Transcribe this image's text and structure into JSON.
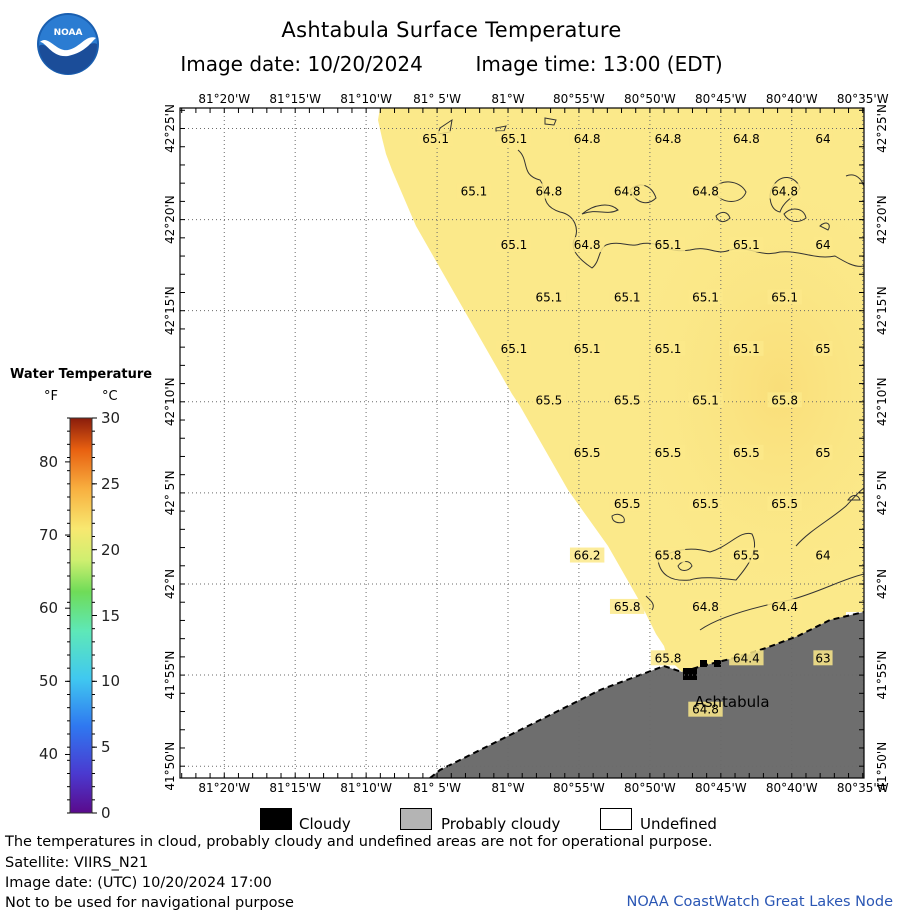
{
  "header": {
    "title": "Ashtabula Surface Temperature",
    "image_date": "Image date: 10/20/2024",
    "image_time": "Image time: 13:00 (EDT)",
    "logo_text": "NOAA"
  },
  "map": {
    "lon_labels": [
      "81°20'W",
      "81°15'W",
      "81°10'W",
      "81° 5'W",
      "81°W",
      "80°55'W",
      "80°50'W",
      "80°45'W",
      "80°40'W",
      "80°35'W"
    ],
    "lat_labels": [
      "42°25'N",
      "42°20'N",
      "42°15'N",
      "42°10'N",
      "42° 5'N",
      "42°N",
      "41°55'N",
      "41°50'N"
    ],
    "place_label": "Ashtabula",
    "temperature_labels": [
      {
        "t": "65.1",
        "lon": -81.085,
        "lat": 42.407
      },
      {
        "t": "65.1",
        "lon": -80.993,
        "lat": 42.407
      },
      {
        "t": "64.8",
        "lon": -80.907,
        "lat": 42.407
      },
      {
        "t": "64.8",
        "lon": -80.812,
        "lat": 42.407
      },
      {
        "t": "64.8",
        "lon": -80.72,
        "lat": 42.407
      },
      {
        "t": "64",
        "lon": -80.63,
        "lat": 42.407
      },
      {
        "t": "65.1",
        "lon": -81.04,
        "lat": 42.359
      },
      {
        "t": "64.8",
        "lon": -80.952,
        "lat": 42.359
      },
      {
        "t": "64.8",
        "lon": -80.86,
        "lat": 42.359
      },
      {
        "t": "64.8",
        "lon": -80.768,
        "lat": 42.359
      },
      {
        "t": "64.8",
        "lon": -80.675,
        "lat": 42.359
      },
      {
        "t": "65.1",
        "lon": -80.993,
        "lat": 42.31
      },
      {
        "t": "64.8",
        "lon": -80.907,
        "lat": 42.31
      },
      {
        "t": "65.1",
        "lon": -80.812,
        "lat": 42.31
      },
      {
        "t": "65.1",
        "lon": -80.72,
        "lat": 42.31
      },
      {
        "t": "64",
        "lon": -80.63,
        "lat": 42.31
      },
      {
        "t": "65.1",
        "lon": -80.952,
        "lat": 42.262
      },
      {
        "t": "65.1",
        "lon": -80.86,
        "lat": 42.262
      },
      {
        "t": "65.1",
        "lon": -80.768,
        "lat": 42.262
      },
      {
        "t": "65.1",
        "lon": -80.675,
        "lat": 42.262
      },
      {
        "t": "65.1",
        "lon": -80.993,
        "lat": 42.215
      },
      {
        "t": "65.1",
        "lon": -80.907,
        "lat": 42.215
      },
      {
        "t": "65.1",
        "lon": -80.812,
        "lat": 42.215
      },
      {
        "t": "65.1",
        "lon": -80.72,
        "lat": 42.215
      },
      {
        "t": "65",
        "lon": -80.63,
        "lat": 42.215
      },
      {
        "t": "65.5",
        "lon": -80.952,
        "lat": 42.168
      },
      {
        "t": "65.5",
        "lon": -80.86,
        "lat": 42.168
      },
      {
        "t": "65.1",
        "lon": -80.768,
        "lat": 42.168
      },
      {
        "t": "65.8",
        "lon": -80.675,
        "lat": 42.168
      },
      {
        "t": "65.5",
        "lon": -80.907,
        "lat": 42.12
      },
      {
        "t": "65.5",
        "lon": -80.812,
        "lat": 42.12
      },
      {
        "t": "65.5",
        "lon": -80.72,
        "lat": 42.12
      },
      {
        "t": "65",
        "lon": -80.63,
        "lat": 42.12
      },
      {
        "t": "65.5",
        "lon": -80.86,
        "lat": 42.073
      },
      {
        "t": "65.5",
        "lon": -80.768,
        "lat": 42.073
      },
      {
        "t": "65.5",
        "lon": -80.675,
        "lat": 42.073
      },
      {
        "t": "66.2",
        "lon": -80.907,
        "lat": 42.026
      },
      {
        "t": "65.8",
        "lon": -80.812,
        "lat": 42.026
      },
      {
        "t": "65.5",
        "lon": -80.72,
        "lat": 42.026
      },
      {
        "t": "64",
        "lon": -80.63,
        "lat": 42.026
      },
      {
        "t": "65.8",
        "lon": -80.86,
        "lat": 41.979
      },
      {
        "t": "64.8",
        "lon": -80.768,
        "lat": 41.979
      },
      {
        "t": "64.4",
        "lon": -80.675,
        "lat": 41.979
      },
      {
        "t": "65.8",
        "lon": -80.812,
        "lat": 41.932
      },
      {
        "t": "64.4",
        "lon": -80.72,
        "lat": 41.932
      },
      {
        "t": "63",
        "lon": -80.63,
        "lat": 41.932
      },
      {
        "t": "64.8",
        "lon": -80.768,
        "lat": 41.885
      }
    ]
  },
  "colorbar": {
    "title": "Water Temperature",
    "unit_f": "°F",
    "unit_c": "°C",
    "f_ticks": [
      "80",
      "70",
      "60",
      "50",
      "40"
    ],
    "c_ticks": [
      "30",
      "25",
      "20",
      "15",
      "10",
      "5",
      "0"
    ]
  },
  "legend": {
    "cloudy": "Cloudy",
    "probably_cloudy": "Probably cloudy",
    "undefined": "Undefined",
    "colors": {
      "cloudy": "#000000",
      "probably_cloudy": "#b4b4b4",
      "undefined": "#ffffff",
      "land": "#6e6e6e",
      "water": "#fbe98a"
    }
  },
  "footer": {
    "line1": "The temperatures in cloud, probably cloudy and undefined areas are not for operational purpose.",
    "line2": "Satellite: VIIRS_N21",
    "line3": "Image date: (UTC) 10/20/2024  17:00",
    "line4": "Not to be used for navigational purpose",
    "credit": "NOAA CoastWatch Great Lakes Node"
  }
}
